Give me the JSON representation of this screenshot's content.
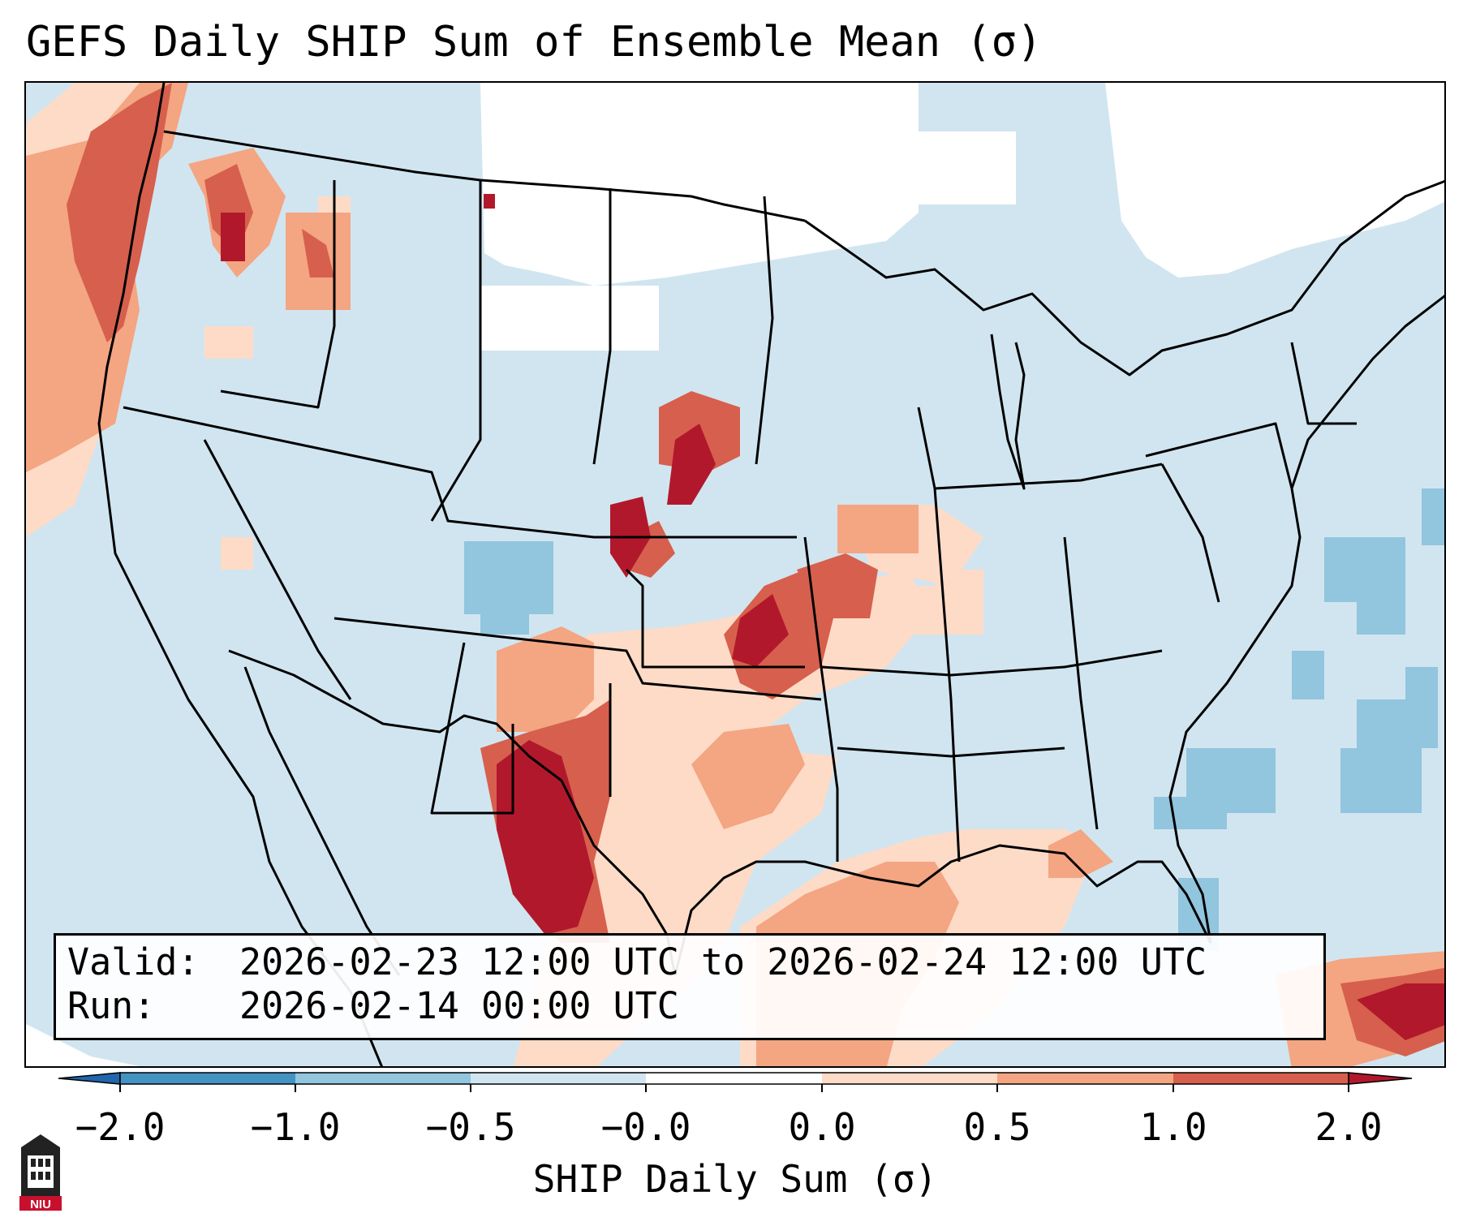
{
  "title": "GEFS Daily SHIP Sum of Ensemble Mean (σ)",
  "info": {
    "valid_label": "Valid:",
    "valid_value": "2026-02-23 12:00 UTC to 2026-02-24 12:00 UTC",
    "run_label": "Run:",
    "run_value": "2026-02-14 00:00 UTC"
  },
  "colorbar": {
    "label": "SHIP Daily Sum (σ)",
    "ticks": [
      "−2.0",
      "−1.0",
      "−0.5",
      "−0.0",
      "0.0",
      "0.5",
      "1.0",
      "2.0"
    ],
    "bins": [
      {
        "range": "< -2.0",
        "color": "#2166ac"
      },
      {
        "range": "-2.0 to -1.0",
        "color": "#4393c3"
      },
      {
        "range": "-1.0 to -0.5",
        "color": "#92c5de"
      },
      {
        "range": "-0.5 to -0.0",
        "color": "#d1e5f0"
      },
      {
        "range": "-0.0 to 0.0",
        "color": "#ffffff"
      },
      {
        "range": "0.0 to 0.5",
        "color": "#fddbc7"
      },
      {
        "range": "0.5 to 1.0",
        "color": "#f4a582"
      },
      {
        "range": "1.0 to 2.0",
        "color": "#d6604d"
      },
      {
        "range": "> 2.0",
        "color": "#b2182b"
      }
    ]
  },
  "logo": {
    "text": "NIU",
    "color": "#c8102e"
  }
}
